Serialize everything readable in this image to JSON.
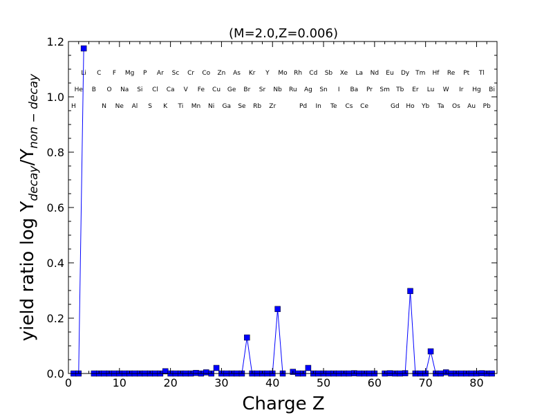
{
  "chart_data": {
    "type": "line",
    "title": "(M=2.0,Z=0.006)",
    "xlabel": "Charge Z",
    "ylabel": {
      "prefix": "yield ratio log Y",
      "sub1": "decay",
      "mid": "/Y",
      "sub2": "non − decay"
    },
    "xlim": [
      0,
      84
    ],
    "ylim": [
      0,
      1.2
    ],
    "xticks": [
      0,
      10,
      20,
      30,
      40,
      50,
      60,
      70,
      80
    ],
    "yticks": [
      0.0,
      0.2,
      0.4,
      0.6,
      0.8,
      1.0,
      1.2
    ],
    "ytick_labels": [
      "0.0",
      "0.2",
      "0.4",
      "0.6",
      "0.8",
      "1.0",
      "1.2"
    ],
    "series": [
      {
        "color": "#0000ff",
        "marker": "square",
        "x": [
          1,
          2,
          3,
          4,
          5,
          6,
          7,
          8,
          9,
          10,
          11,
          12,
          13,
          14,
          15,
          16,
          17,
          18,
          19,
          20,
          21,
          22,
          23,
          24,
          25,
          26,
          27,
          28,
          29,
          30,
          31,
          32,
          33,
          34,
          35,
          36,
          37,
          38,
          39,
          40,
          41,
          42,
          43,
          44,
          45,
          46,
          47,
          48,
          49,
          50,
          51,
          52,
          53,
          54,
          55,
          56,
          57,
          58,
          59,
          60,
          62,
          63,
          64,
          65,
          66,
          67,
          68,
          69,
          70,
          71,
          72,
          73,
          74,
          75,
          76,
          77,
          78,
          79,
          80,
          81,
          82,
          83
        ],
        "y": [
          0,
          0,
          1.175,
          null,
          0,
          0,
          0,
          0,
          0,
          0,
          0,
          0,
          0,
          0,
          0,
          0,
          0,
          0,
          0.008,
          0,
          0,
          0,
          0,
          0,
          0.002,
          0,
          0.004,
          0,
          0.02,
          0,
          0,
          0,
          0,
          0,
          0.13,
          0,
          0,
          0,
          0,
          0,
          0.233,
          0,
          null,
          0.006,
          0,
          0,
          0.02,
          0,
          0,
          0,
          0,
          0,
          0,
          0,
          0,
          0.001,
          0,
          0,
          0,
          0,
          0,
          0.001,
          0,
          0,
          0.001,
          0.298,
          0,
          0,
          0,
          0.08,
          0,
          0,
          0.004,
          0,
          0,
          0,
          0,
          0,
          0,
          0.001,
          0,
          0
        ]
      }
    ],
    "element_labels": [
      {
        "z": 1,
        "sym": "H"
      },
      {
        "z": 2,
        "sym": "He"
      },
      {
        "z": 3,
        "sym": "Li"
      },
      {
        "z": 5,
        "sym": "B"
      },
      {
        "z": 6,
        "sym": "C"
      },
      {
        "z": 7,
        "sym": "N"
      },
      {
        "z": 8,
        "sym": "O"
      },
      {
        "z": 9,
        "sym": "F"
      },
      {
        "z": 10,
        "sym": "Ne"
      },
      {
        "z": 11,
        "sym": "Na"
      },
      {
        "z": 12,
        "sym": "Mg"
      },
      {
        "z": 13,
        "sym": "Al"
      },
      {
        "z": 14,
        "sym": "Si"
      },
      {
        "z": 15,
        "sym": "P"
      },
      {
        "z": 16,
        "sym": "S"
      },
      {
        "z": 17,
        "sym": "Cl"
      },
      {
        "z": 18,
        "sym": "Ar"
      },
      {
        "z": 19,
        "sym": "K"
      },
      {
        "z": 20,
        "sym": "Ca"
      },
      {
        "z": 21,
        "sym": "Sc"
      },
      {
        "z": 22,
        "sym": "Ti"
      },
      {
        "z": 23,
        "sym": "V"
      },
      {
        "z": 24,
        "sym": "Cr"
      },
      {
        "z": 25,
        "sym": "Mn"
      },
      {
        "z": 26,
        "sym": "Fe"
      },
      {
        "z": 27,
        "sym": "Co"
      },
      {
        "z": 28,
        "sym": "Ni"
      },
      {
        "z": 29,
        "sym": "Cu"
      },
      {
        "z": 30,
        "sym": "Zn"
      },
      {
        "z": 31,
        "sym": "Ga"
      },
      {
        "z": 32,
        "sym": "Ge"
      },
      {
        "z": 33,
        "sym": "As"
      },
      {
        "z": 34,
        "sym": "Se"
      },
      {
        "z": 35,
        "sym": "Br"
      },
      {
        "z": 36,
        "sym": "Kr"
      },
      {
        "z": 37,
        "sym": "Rb"
      },
      {
        "z": 38,
        "sym": "Sr"
      },
      {
        "z": 39,
        "sym": "Y"
      },
      {
        "z": 40,
        "sym": "Zr"
      },
      {
        "z": 41,
        "sym": "Nb"
      },
      {
        "z": 42,
        "sym": "Mo"
      },
      {
        "z": 44,
        "sym": "Ru"
      },
      {
        "z": 45,
        "sym": "Rh"
      },
      {
        "z": 46,
        "sym": "Pd"
      },
      {
        "z": 47,
        "sym": "Ag"
      },
      {
        "z": 48,
        "sym": "Cd"
      },
      {
        "z": 49,
        "sym": "In"
      },
      {
        "z": 50,
        "sym": "Sn"
      },
      {
        "z": 51,
        "sym": "Sb"
      },
      {
        "z": 52,
        "sym": "Te"
      },
      {
        "z": 53,
        "sym": "I"
      },
      {
        "z": 54,
        "sym": "Xe"
      },
      {
        "z": 55,
        "sym": "Cs"
      },
      {
        "z": 56,
        "sym": "Ba"
      },
      {
        "z": 57,
        "sym": "La"
      },
      {
        "z": 58,
        "sym": "Ce"
      },
      {
        "z": 59,
        "sym": "Pr"
      },
      {
        "z": 60,
        "sym": "Nd"
      },
      {
        "z": 62,
        "sym": "Sm"
      },
      {
        "z": 63,
        "sym": "Eu"
      },
      {
        "z": 64,
        "sym": "Gd"
      },
      {
        "z": 65,
        "sym": "Tb"
      },
      {
        "z": 66,
        "sym": "Dy"
      },
      {
        "z": 67,
        "sym": "Ho"
      },
      {
        "z": 68,
        "sym": "Er"
      },
      {
        "z": 69,
        "sym": "Tm"
      },
      {
        "z": 70,
        "sym": "Yb"
      },
      {
        "z": 71,
        "sym": "Lu"
      },
      {
        "z": 72,
        "sym": "Hf"
      },
      {
        "z": 73,
        "sym": "Ta"
      },
      {
        "z": 74,
        "sym": "W"
      },
      {
        "z": 75,
        "sym": "Re"
      },
      {
        "z": 76,
        "sym": "Os"
      },
      {
        "z": 77,
        "sym": "Ir"
      },
      {
        "z": 78,
        "sym": "Pt"
      },
      {
        "z": 79,
        "sym": "Au"
      },
      {
        "z": 80,
        "sym": "Hg"
      },
      {
        "z": 81,
        "sym": "Tl"
      },
      {
        "z": 82,
        "sym": "Pb"
      },
      {
        "z": 83,
        "sym": "Bi"
      }
    ],
    "grid": false,
    "legend": "none"
  }
}
